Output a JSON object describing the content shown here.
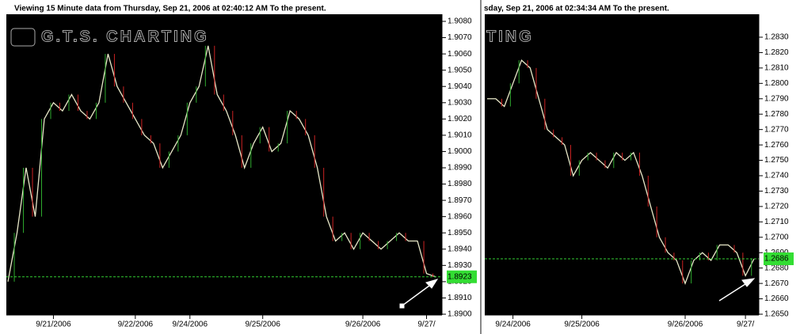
{
  "chart_data": [
    {
      "type": "line",
      "title": "Viewing 15 Minute  data from Thursday, Sep 21, 2006 at 02:40:12 AM To the present.",
      "watermark": "G.T.S. CHARTING",
      "color": "#e8e8c8",
      "values": [
        1.892,
        1.895,
        1.899,
        1.896,
        1.902,
        1.903,
        1.9025,
        1.9035,
        1.9025,
        1.902,
        1.903,
        1.906,
        1.904,
        1.903,
        1.902,
        1.901,
        1.9005,
        1.899,
        1.9,
        1.901,
        1.903,
        1.904,
        1.9065,
        1.9035,
        1.9025,
        1.901,
        1.899,
        1.9005,
        1.9015,
        1.9,
        1.9005,
        1.9025,
        1.902,
        1.901,
        1.899,
        1.896,
        1.8945,
        1.895,
        1.894,
        1.895,
        1.8945,
        1.894,
        1.8945,
        1.895,
        1.8945,
        1.8945,
        1.8925,
        1.8923
      ],
      "xlim": [
        0,
        47
      ],
      "xticks": [
        {
          "value": 5,
          "label": "9/21/2006"
        },
        {
          "value": 14,
          "label": "9/22/2006"
        },
        {
          "value": 20,
          "label": "9/24/2006"
        },
        {
          "value": 28,
          "label": "9/25/2006"
        },
        {
          "value": 39,
          "label": "9/26/2006"
        },
        {
          "value": 46,
          "label": "9/27/"
        }
      ],
      "ylim": [
        1.89,
        1.908
      ],
      "yticks": [
        {
          "value": 1.89,
          "label": "1.8900"
        },
        {
          "value": 1.891,
          "label": "1.8910"
        },
        {
          "value": 1.892,
          "label": "1.8920"
        },
        {
          "value": 1.893,
          "label": "1.8930"
        },
        {
          "value": 1.894,
          "label": "1.8940"
        },
        {
          "value": 1.895,
          "label": "1.8950"
        },
        {
          "value": 1.896,
          "label": "1.8960"
        },
        {
          "value": 1.897,
          "label": "1.8970"
        },
        {
          "value": 1.898,
          "label": "1.8980"
        },
        {
          "value": 1.899,
          "label": "1.8990"
        },
        {
          "value": 1.9,
          "label": "1.9000"
        },
        {
          "value": 1.901,
          "label": "1.9010"
        },
        {
          "value": 1.902,
          "label": "1.9020"
        },
        {
          "value": 1.903,
          "label": "1.9030"
        },
        {
          "value": 1.904,
          "label": "1.9040"
        },
        {
          "value": 1.905,
          "label": "1.9050"
        },
        {
          "value": 1.906,
          "label": "1.9060"
        },
        {
          "value": 1.907,
          "label": "1.9070"
        },
        {
          "value": 1.908,
          "label": "1.9080"
        }
      ],
      "current": {
        "value": 1.8923,
        "label": "1.8923"
      }
    },
    {
      "type": "line",
      "title": "sday, Sep 21, 2006 at 02:34:34 AM To the present.",
      "watermark": "TING",
      "color": "#e8e8c8",
      "values": [
        1.279,
        1.279,
        1.2785,
        1.28,
        1.2815,
        1.281,
        1.279,
        1.277,
        1.2765,
        1.276,
        1.274,
        1.275,
        1.2755,
        1.275,
        1.2745,
        1.2755,
        1.275,
        1.2755,
        1.274,
        1.272,
        1.27,
        1.269,
        1.2685,
        1.267,
        1.2685,
        1.269,
        1.2685,
        1.2695,
        1.2695,
        1.269,
        1.2675,
        1.2686
      ],
      "xlim": [
        0,
        31
      ],
      "xticks": [
        {
          "value": 3,
          "label": "9/24/2006"
        },
        {
          "value": 11,
          "label": "9/25/2006"
        },
        {
          "value": 23,
          "label": "9/26/2006"
        },
        {
          "value": 30,
          "label": "9/27/"
        }
      ],
      "ylim": [
        1.265,
        1.283
      ],
      "yticks": [
        {
          "value": 1.265,
          "label": "1.2650"
        },
        {
          "value": 1.266,
          "label": "1.2660"
        },
        {
          "value": 1.267,
          "label": "1.2670"
        },
        {
          "value": 1.268,
          "label": "1.2680"
        },
        {
          "value": 1.269,
          "label": "1.2690"
        },
        {
          "value": 1.27,
          "label": "1.2700"
        },
        {
          "value": 1.271,
          "label": "1.2710"
        },
        {
          "value": 1.272,
          "label": "1.2720"
        },
        {
          "value": 1.273,
          "label": "1.2730"
        },
        {
          "value": 1.274,
          "label": "1.2740"
        },
        {
          "value": 1.275,
          "label": "1.2750"
        },
        {
          "value": 1.276,
          "label": "1.2760"
        },
        {
          "value": 1.277,
          "label": "1.2770"
        },
        {
          "value": 1.278,
          "label": "1.2780"
        },
        {
          "value": 1.279,
          "label": "1.2790"
        },
        {
          "value": 1.28,
          "label": "1.2800"
        },
        {
          "value": 1.281,
          "label": "1.2810"
        },
        {
          "value": 1.282,
          "label": "1.2820"
        },
        {
          "value": 1.283,
          "label": "1.2830"
        }
      ],
      "current": {
        "value": 1.2686,
        "label": "1.2686"
      }
    }
  ]
}
